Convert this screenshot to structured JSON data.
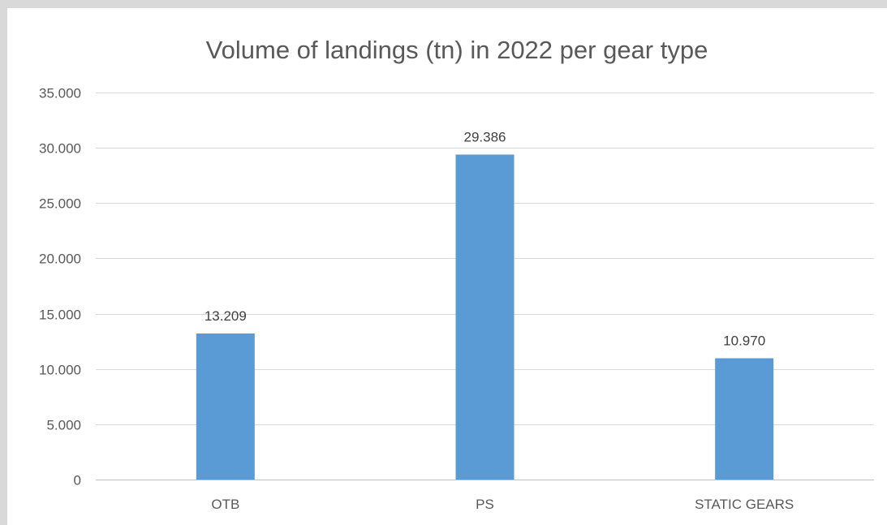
{
  "chart_data": {
    "type": "bar",
    "title": "Volume of landings (tn) in 2022 per gear type",
    "xlabel": "",
    "ylabel": "",
    "categories": [
      "OTB",
      "PS",
      "STATIC GEARS"
    ],
    "values": [
      13209,
      29386,
      10970
    ],
    "data_labels": [
      "13.209",
      "29.386",
      "10.970"
    ],
    "ylim": [
      0,
      35000
    ],
    "y_ticks": [
      0,
      5000,
      10000,
      15000,
      20000,
      25000,
      30000,
      35000
    ],
    "y_tick_labels": [
      "0",
      "5.000",
      "10.000",
      "15.000",
      "20.000",
      "25.000",
      "30.000",
      "35.000"
    ],
    "grid": true,
    "legend": "none",
    "bar_color": "#5b9bd5"
  }
}
